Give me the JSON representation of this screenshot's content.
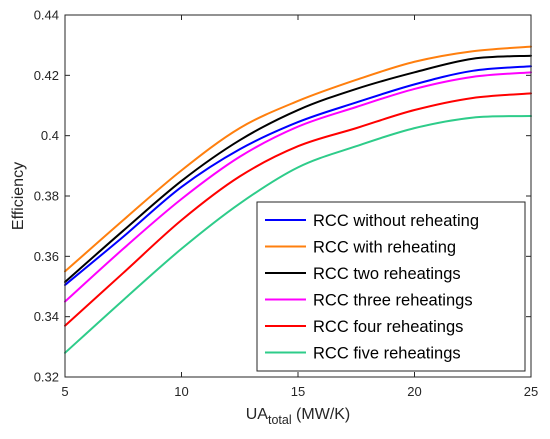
{
  "chart_data": {
    "type": "line",
    "xlabel_main": "UA",
    "xlabel_sub": "total",
    "xlabel_unit": " (MW/K)",
    "ylabel": "Efficiency",
    "xlim": [
      5,
      25
    ],
    "ylim": [
      0.32,
      0.44
    ],
    "xticks": [
      5,
      10,
      15,
      20,
      25
    ],
    "xtick_labels": [
      "5",
      "10",
      "15",
      "20",
      "25"
    ],
    "yticks": [
      0.32,
      0.34,
      0.36,
      0.38,
      0.4,
      0.42,
      0.44
    ],
    "ytick_labels": [
      "0.32",
      "0.34",
      "0.36",
      "0.38",
      "0.4",
      "0.42",
      "0.44"
    ],
    "grid": false,
    "legend_position": "bottom-right",
    "x": [
      5,
      7.5,
      10,
      12.5,
      15,
      17.5,
      20,
      22.5,
      25
    ],
    "series": [
      {
        "name": "RCC without reheating",
        "color": "#0000ff",
        "values": [
          0.3505,
          0.3665,
          0.383,
          0.3955,
          0.4045,
          0.411,
          0.417,
          0.4215,
          0.423
        ]
      },
      {
        "name": "RCC with reheating",
        "color": "#ff7f0e",
        "values": [
          0.355,
          0.372,
          0.3885,
          0.4025,
          0.4115,
          0.4185,
          0.4245,
          0.428,
          0.4295
        ]
      },
      {
        "name": "RCC two reheatings",
        "color": "#000000",
        "values": [
          0.3515,
          0.3685,
          0.385,
          0.3985,
          0.4085,
          0.4155,
          0.421,
          0.4255,
          0.4265
        ]
      },
      {
        "name": "RCC three reheatings",
        "color": "#ff00ff",
        "values": [
          0.345,
          0.3625,
          0.379,
          0.393,
          0.403,
          0.4095,
          0.4155,
          0.4195,
          0.421
        ]
      },
      {
        "name": "RCC four reheatings",
        "color": "#ff0000",
        "values": [
          0.337,
          0.3545,
          0.372,
          0.3865,
          0.3965,
          0.4025,
          0.4085,
          0.4125,
          0.414
        ]
      },
      {
        "name": "RCC five reheatings",
        "color": "#2ecc8a",
        "values": [
          0.328,
          0.3455,
          0.3625,
          0.3775,
          0.3895,
          0.3965,
          0.4025,
          0.406,
          0.4065
        ]
      }
    ]
  }
}
